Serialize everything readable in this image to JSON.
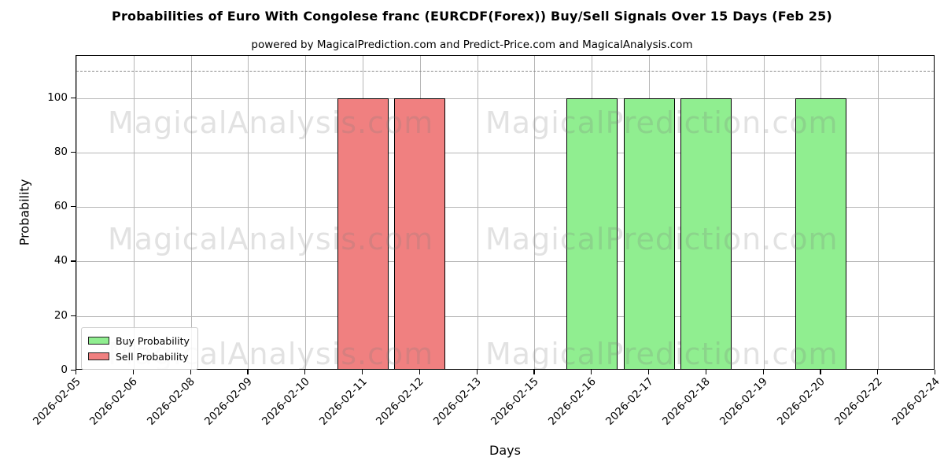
{
  "chart_data": {
    "type": "bar",
    "title": "Probabilities of Euro With Congolese franc (EURCDF(Forex)) Buy/Sell Signals Over 15 Days (Feb 25)",
    "subtitle": "powered by MagicalPrediction.com and Predict-Price.com and MagicalAnalysis.com",
    "xlabel": "Days",
    "ylabel": "Probability",
    "categories": [
      "2026-02-05",
      "2026-02-06",
      "2026-02-08",
      "2026-02-09",
      "2026-02-10",
      "2026-02-11",
      "2026-02-12",
      "2026-02-13",
      "2026-02-15",
      "2026-02-16",
      "2026-02-17",
      "2026-02-18",
      "2026-02-19",
      "2026-02-20",
      "2026-02-22",
      "2026-02-24"
    ],
    "series": [
      {
        "name": "Buy Probability",
        "color": "#90ee90",
        "edge_color": "#000000",
        "values": [
          0,
          0,
          0,
          0,
          0,
          0,
          0,
          0,
          0,
          100,
          100,
          100,
          0,
          100,
          0,
          0
        ]
      },
      {
        "name": "Sell Probability",
        "color": "#f08080",
        "edge_color": "#000000",
        "values": [
          0,
          0,
          0,
          0,
          0,
          100,
          100,
          0,
          0,
          0,
          0,
          0,
          0,
          0,
          0,
          0
        ]
      }
    ],
    "yticks": [
      0,
      20,
      40,
      60,
      80,
      100
    ],
    "ylim": [
      0,
      115.5
    ],
    "dashed_line_y": 110,
    "dashed_line_color": "#8a8a8a",
    "grid": true,
    "grid_color": "#b6b6b6",
    "legend_position": "lower left",
    "watermarks": {
      "left_text": "MagicalAnalysis.com",
      "right_text": "MagicalPrediction.com",
      "rows": 3
    }
  }
}
